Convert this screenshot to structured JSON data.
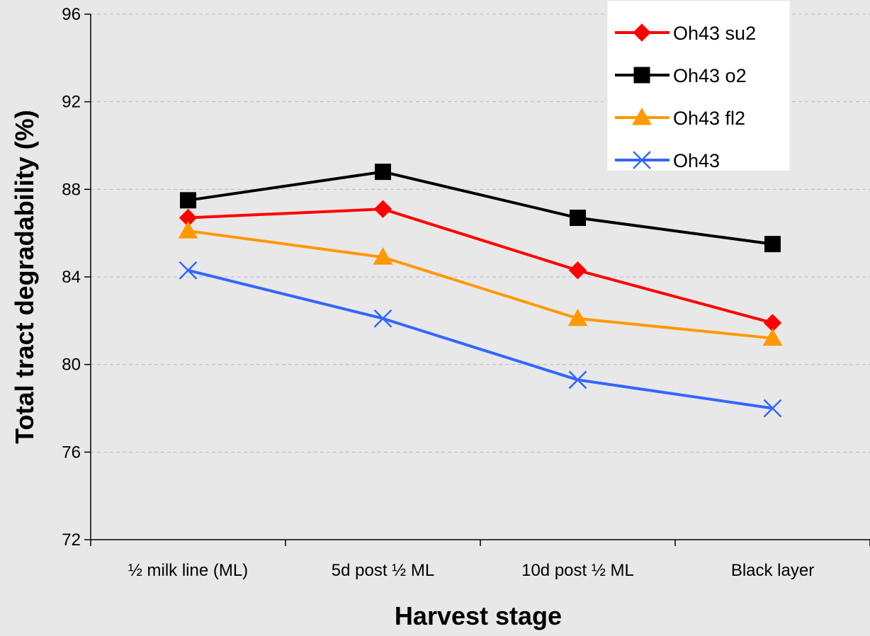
{
  "chart_data": {
    "type": "line",
    "title": "",
    "xlabel": "Harvest stage",
    "ylabel": "Total tract degradability (%)",
    "categories": [
      "½ milk line (ML)",
      "5d post ½ ML",
      "10d post ½ ML",
      "Black layer"
    ],
    "ylim": [
      72,
      96
    ],
    "yticks": [
      72,
      76,
      80,
      84,
      88,
      92,
      96
    ],
    "grid": true,
    "legend_position": "top-right",
    "series": [
      {
        "name": "Oh43 su2",
        "values": [
          86.7,
          87.1,
          84.3,
          81.9
        ],
        "color": "#ff0000",
        "marker": "diamond"
      },
      {
        "name": "Oh43 o2",
        "values": [
          87.5,
          88.8,
          86.7,
          85.5
        ],
        "color": "#000000",
        "marker": "square"
      },
      {
        "name": "Oh43 fl2",
        "values": [
          86.1,
          84.9,
          82.1,
          81.2
        ],
        "color": "#ff9900",
        "marker": "triangle"
      },
      {
        "name": "Oh43",
        "values": [
          84.3,
          82.1,
          79.3,
          78.0
        ],
        "color": "#3366ff",
        "marker": "x"
      }
    ]
  }
}
